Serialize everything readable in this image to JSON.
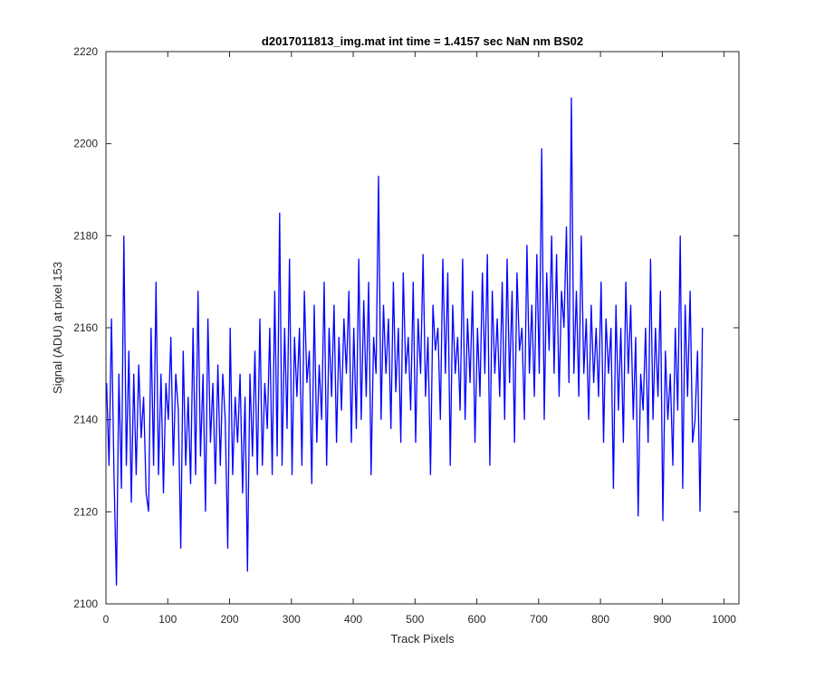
{
  "chart_data": {
    "type": "line",
    "title": "d2017011813_img.mat int time = 1.4157 sec  NaN nm BS02",
    "xlabel": "Track Pixels",
    "ylabel": "Signal (ADU) at pixel 153",
    "xlim": [
      0,
      1024
    ],
    "ylim": [
      2100,
      2220
    ],
    "xticks": [
      0,
      100,
      200,
      300,
      400,
      500,
      600,
      700,
      800,
      900,
      1000
    ],
    "yticks": [
      2100,
      2120,
      2140,
      2160,
      2180,
      2200,
      2220
    ],
    "grid": false,
    "line_color": "#0000ff",
    "series": [
      {
        "x_start": 1,
        "x_step": 4,
        "values": [
          2148,
          2130,
          2162,
          2128,
          2104,
          2150,
          2125,
          2180,
          2130,
          2155,
          2122,
          2150,
          2128,
          2152,
          2136,
          2145,
          2124,
          2120,
          2160,
          2130,
          2170,
          2128,
          2150,
          2124,
          2148,
          2140,
          2158,
          2130,
          2150,
          2142,
          2112,
          2155,
          2130,
          2145,
          2126,
          2160,
          2128,
          2168,
          2132,
          2150,
          2120,
          2162,
          2135,
          2148,
          2126,
          2152,
          2130,
          2150,
          2140,
          2112,
          2160,
          2128,
          2145,
          2135,
          2150,
          2124,
          2145,
          2107,
          2150,
          2132,
          2155,
          2128,
          2162,
          2130,
          2148,
          2138,
          2160,
          2128,
          2168,
          2132,
          2185,
          2130,
          2160,
          2138,
          2175,
          2128,
          2158,
          2145,
          2160,
          2130,
          2168,
          2148,
          2155,
          2126,
          2165,
          2135,
          2152,
          2140,
          2170,
          2130,
          2160,
          2145,
          2165,
          2135,
          2158,
          2142,
          2162,
          2150,
          2168,
          2135,
          2160,
          2138,
          2175,
          2140,
          2166,
          2145,
          2170,
          2128,
          2158,
          2150,
          2193,
          2140,
          2165,
          2150,
          2162,
          2138,
          2170,
          2146,
          2160,
          2135,
          2172,
          2150,
          2158,
          2142,
          2170,
          2135,
          2162,
          2150,
          2176,
          2145,
          2158,
          2128,
          2165,
          2155,
          2160,
          2140,
          2175,
          2150,
          2172,
          2130,
          2165,
          2150,
          2158,
          2142,
          2175,
          2140,
          2162,
          2148,
          2168,
          2135,
          2160,
          2145,
          2172,
          2150,
          2176,
          2130,
          2168,
          2150,
          2162,
          2145,
          2170,
          2140,
          2175,
          2148,
          2168,
          2135,
          2172,
          2155,
          2160,
          2140,
          2178,
          2150,
          2165,
          2145,
          2176,
          2150,
          2199,
          2140,
          2172,
          2155,
          2180,
          2150,
          2176,
          2145,
          2168,
          2160,
          2182,
          2148,
          2210,
          2150,
          2168,
          2145,
          2180,
          2150,
          2162,
          2140,
          2165,
          2148,
          2160,
          2145,
          2170,
          2135,
          2162,
          2150,
          2160,
          2125,
          2165,
          2142,
          2160,
          2135,
          2170,
          2150,
          2165,
          2140,
          2158,
          2119,
          2150,
          2142,
          2160,
          2135,
          2175,
          2140,
          2160,
          2145,
          2168,
          2118,
          2155,
          2140,
          2150,
          2130,
          2160,
          2142,
          2180,
          2125,
          2165,
          2145,
          2168,
          2135,
          2140,
          2155,
          2120,
          2160
        ]
      }
    ]
  }
}
